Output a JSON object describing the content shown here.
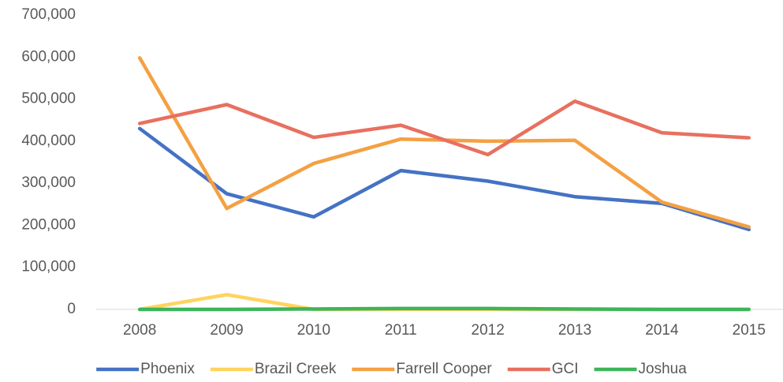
{
  "chart_data": {
    "type": "line",
    "categories": [
      "2008",
      "2009",
      "2010",
      "2011",
      "2012",
      "2013",
      "2014",
      "2015"
    ],
    "series": [
      {
        "name": "Phoenix",
        "color": "#4472c4",
        "values": [
          430000,
          275000,
          220000,
          330000,
          305000,
          268000,
          252000,
          190000
        ]
      },
      {
        "name": "Brazil Creek",
        "color": "#ffd45e",
        "values": [
          0,
          35000,
          0,
          0,
          0,
          0,
          0,
          0
        ]
      },
      {
        "name": "Farrell Cooper",
        "color": "#f4a043",
        "values": [
          598000,
          240000,
          347000,
          405000,
          400000,
          402000,
          255000,
          196000
        ]
      },
      {
        "name": "GCI",
        "color": "#e8705f",
        "values": [
          442000,
          487000,
          409000,
          438000,
          368000,
          495000,
          420000,
          408000
        ]
      },
      {
        "name": "Joshua",
        "color": "#3cb55a",
        "values": [
          0,
          0,
          1000,
          2000,
          2000,
          1000,
          0,
          0
        ]
      }
    ],
    "ylim": [
      0,
      700000
    ],
    "yticks": [
      0,
      {
        "value": 100000,
        "label": "100,000"
      },
      {
        "value": 200000,
        "label": "200,000"
      },
      {
        "value": 300000,
        "label": "300,000"
      },
      {
        "value": 400000,
        "label": "400,000"
      },
      {
        "value": 500000,
        "label": "500,000"
      },
      {
        "value": 600000,
        "label": "600,000"
      },
      {
        "value": 700000,
        "label": "700,000"
      }
    ],
    "grid": false,
    "legend": "bottom"
  }
}
